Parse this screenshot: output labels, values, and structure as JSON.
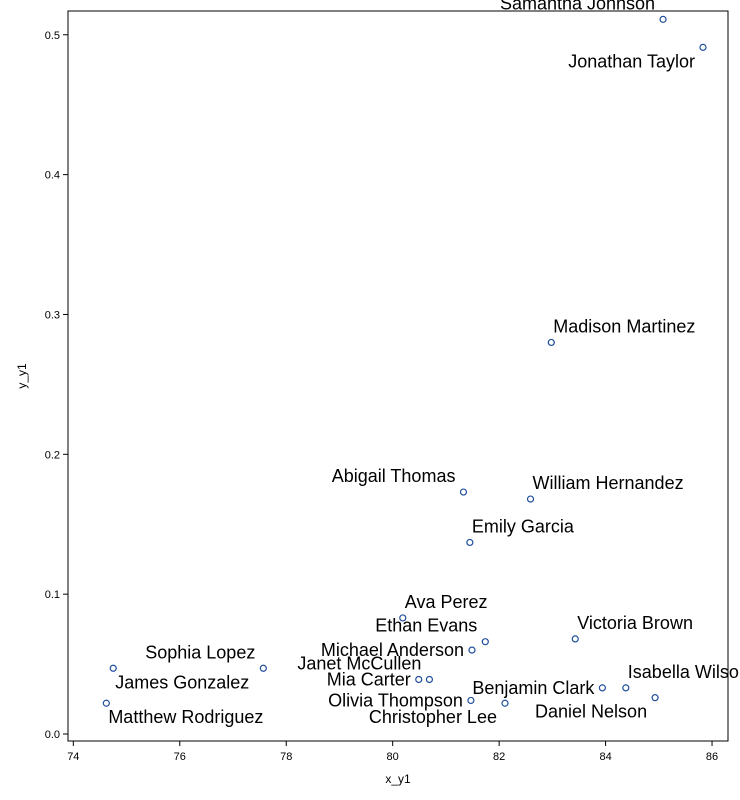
{
  "chart_data": {
    "type": "scatter",
    "xlabel": "x_y1",
    "ylabel": "y_y1",
    "xlim": [
      73.9,
      86.3
    ],
    "ylim": [
      -0.005,
      0.517
    ],
    "xticks": [
      74,
      76,
      78,
      80,
      82,
      84,
      86
    ],
    "yticks": [
      0.0,
      0.1,
      0.2,
      0.3,
      0.4,
      0.5
    ],
    "grid": false,
    "legend": "none",
    "colors": {
      "point_stroke": "#1f4e9c",
      "point_fill": "#ffffff",
      "text": "#000000"
    },
    "points": [
      {
        "label": "Samantha Johnson",
        "x": 85.08,
        "y": 0.511,
        "anchor": "end",
        "pos": "above"
      },
      {
        "label": "Jonathan Taylor",
        "x": 85.83,
        "y": 0.491,
        "anchor": "end",
        "pos": "below"
      },
      {
        "label": "Madison Martinez",
        "x": 82.98,
        "y": 0.28,
        "anchor": "start",
        "pos": "above"
      },
      {
        "label": "Abigail Thomas",
        "x": 81.33,
        "y": 0.173,
        "anchor": "end",
        "pos": "above"
      },
      {
        "label": "William Hernandez",
        "x": 82.59,
        "y": 0.168,
        "anchor": "start",
        "pos": "above"
      },
      {
        "label": "Emily Garcia",
        "x": 81.45,
        "y": 0.137,
        "anchor": "start",
        "pos": "above"
      },
      {
        "label": "Ava Perez",
        "x": 80.19,
        "y": 0.083,
        "anchor": "start",
        "pos": "above"
      },
      {
        "label": "Ethan Evans",
        "x": 81.74,
        "y": 0.066,
        "anchor": "end",
        "pos": "above"
      },
      {
        "label": "Victoria Brown",
        "x": 83.43,
        "y": 0.068,
        "anchor": "start",
        "pos": "above"
      },
      {
        "label": "Michael Anderson",
        "x": 81.49,
        "y": 0.06,
        "anchor": "end",
        "pos": "mid"
      },
      {
        "label": "Sophia Lopez",
        "x": 77.57,
        "y": 0.047,
        "anchor": "end",
        "pos": "above"
      },
      {
        "label": "James Gonzalez",
        "x": 74.75,
        "y": 0.047,
        "anchor": "start",
        "pos": "below"
      },
      {
        "label": "Janet McCullen",
        "x": 80.69,
        "y": 0.039,
        "anchor": "end",
        "pos": "above"
      },
      {
        "label": "Mia Carter",
        "x": 80.49,
        "y": 0.039,
        "anchor": "end",
        "pos": "mid"
      },
      {
        "label": "Isabella Wilson",
        "x": 84.38,
        "y": 0.033,
        "anchor": "start",
        "pos": "above"
      },
      {
        "label": "Benjamin Clark",
        "x": 83.94,
        "y": 0.033,
        "anchor": "end",
        "pos": "mid"
      },
      {
        "label": "Daniel Nelson",
        "x": 84.93,
        "y": 0.026,
        "anchor": "end",
        "pos": "below"
      },
      {
        "label": "Olivia Thompson",
        "x": 81.47,
        "y": 0.024,
        "anchor": "end",
        "pos": "mid"
      },
      {
        "label": "Christopher Lee",
        "x": 82.11,
        "y": 0.022,
        "anchor": "end",
        "pos": "below"
      },
      {
        "label": "Matthew Rodriguez",
        "x": 74.62,
        "y": 0.022,
        "anchor": "start",
        "pos": "below"
      }
    ]
  }
}
